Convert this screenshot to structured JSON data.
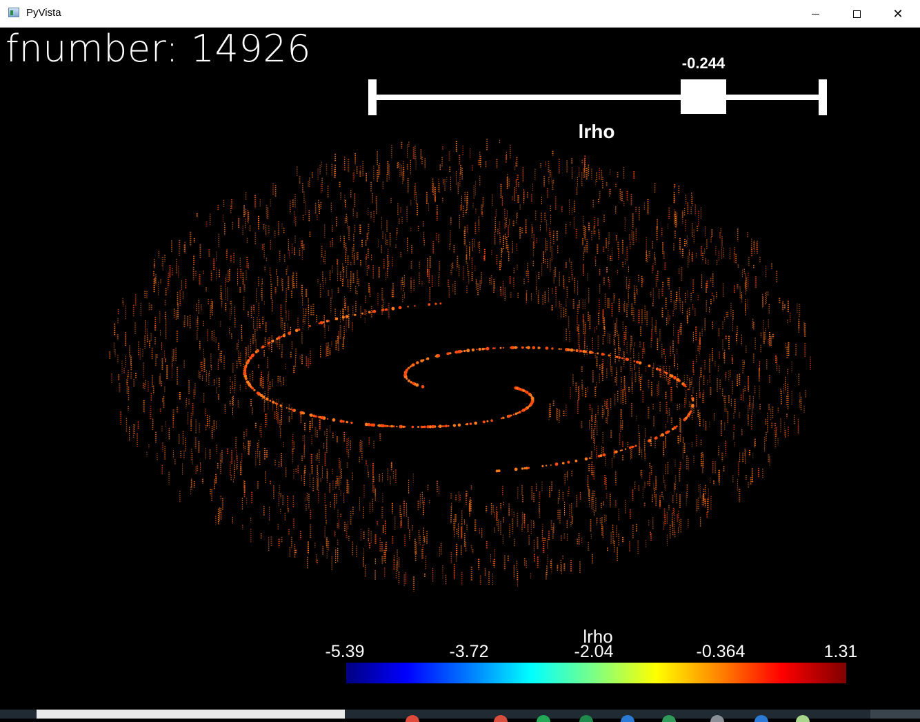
{
  "window": {
    "title": "PyVista"
  },
  "overlay": {
    "fnumber_text": "fnumber: 14926"
  },
  "slider": {
    "title": "lrho",
    "value_text": "-0.244",
    "value": -0.244
  },
  "colorbar": {
    "title": "lrho",
    "ticks": [
      "-5.39",
      "-3.72",
      "-2.04",
      "-0.364",
      "1.31"
    ],
    "colormap": "jet",
    "range": [
      -5.39,
      1.31
    ]
  },
  "colors": {
    "background": "#000000",
    "particles_main": "#ff7a1a",
    "particles_bright": "#ff4a10",
    "particles_dim": "#d9661a"
  },
  "taskbar": {
    "icons": [
      {
        "name": "chrome-icon",
        "color": "#e04a3a"
      },
      {
        "name": "office-icon",
        "color": "#d94f3d"
      },
      {
        "name": "whatsapp-icon",
        "color": "#25a855"
      },
      {
        "name": "excel-icon",
        "color": "#1f8a4c"
      },
      {
        "name": "app-icon",
        "color": "#2b7bd6"
      },
      {
        "name": "app-icon",
        "color": "#2f9a5a"
      },
      {
        "name": "app-icon",
        "color": "#8a8f95"
      },
      {
        "name": "app-icon",
        "color": "#2b7bd6"
      },
      {
        "name": "app-icon",
        "color": "#a8d68a"
      }
    ]
  }
}
